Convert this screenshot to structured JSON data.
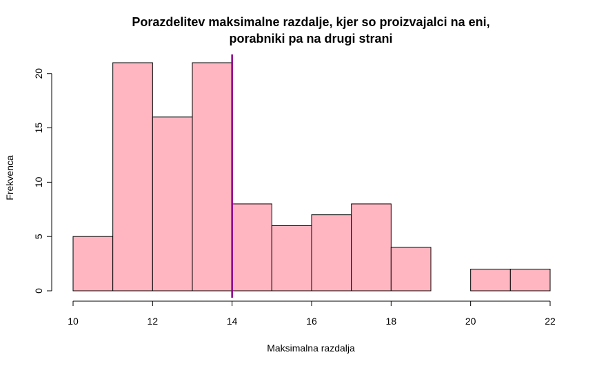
{
  "chart_data": {
    "type": "bar",
    "title_lines": [
      "Porazdelitev maksimalne razdalje, kjer so proizvajalci na eni,",
      "porabniki pa na drugi strani"
    ],
    "xlabel": "Maksimalna razdalja",
    "ylabel": "Frekvenca",
    "bins": [
      {
        "start": 10,
        "end": 11,
        "count": 5
      },
      {
        "start": 11,
        "end": 12,
        "count": 21
      },
      {
        "start": 12,
        "end": 13,
        "count": 16
      },
      {
        "start": 13,
        "end": 14,
        "count": 21
      },
      {
        "start": 14,
        "end": 15,
        "count": 8
      },
      {
        "start": 15,
        "end": 16,
        "count": 6
      },
      {
        "start": 16,
        "end": 17,
        "count": 7
      },
      {
        "start": 17,
        "end": 18,
        "count": 8
      },
      {
        "start": 18,
        "end": 19,
        "count": 4
      },
      {
        "start": 19,
        "end": 20,
        "count": 0
      },
      {
        "start": 20,
        "end": 21,
        "count": 2
      },
      {
        "start": 21,
        "end": 22,
        "count": 2
      }
    ],
    "xlim": [
      10,
      22
    ],
    "ylim": [
      0,
      21
    ],
    "x_ticks": [
      "10",
      "12",
      "14",
      "16",
      "18",
      "20",
      "22"
    ],
    "y_ticks": [
      "0",
      "5",
      "10",
      "15",
      "20"
    ],
    "vline_x": 14,
    "colors": {
      "bar_fill": "#FFB6C1",
      "bar_stroke": "#000000",
      "vline": "#8B008B"
    }
  }
}
